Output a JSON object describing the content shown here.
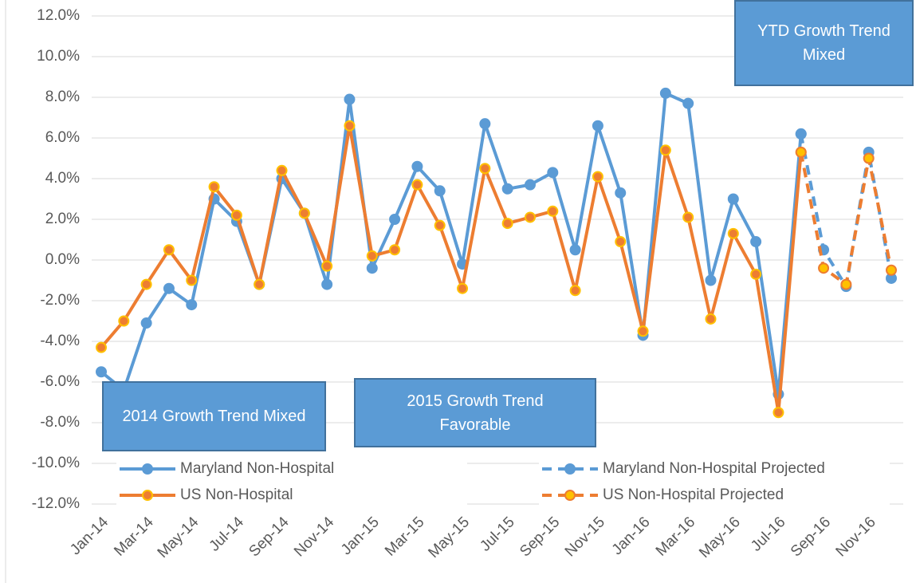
{
  "chart_data": {
    "type": "line",
    "categories": [
      "Jan-14",
      null,
      "Mar-14",
      null,
      "May-14",
      null,
      "Jul-14",
      null,
      "Sep-14",
      null,
      "Nov-14",
      null,
      "Jan-15",
      null,
      "Mar-15",
      null,
      "May-15",
      null,
      "Jul-15",
      null,
      "Sep-15",
      null,
      "Nov-15",
      null,
      "Jan-16",
      null,
      "Mar-16",
      null,
      "May-16",
      null,
      "Jul-16",
      null,
      "Sep-16",
      null,
      "Nov-16",
      null
    ],
    "series": [
      {
        "name": "Maryland Non-Hospital",
        "color": "#5b9bd5",
        "marker_fill": "#5b9bd5",
        "marker_stroke": "#5b9bd5",
        "dashed": false,
        "values": [
          -5.5,
          -6.4,
          -3.1,
          -1.4,
          -2.2,
          3.0,
          1.9,
          -1.2,
          4.0,
          2.3,
          -1.2,
          7.9,
          -0.4,
          2.0,
          4.6,
          3.4,
          -0.2,
          6.7,
          3.5,
          3.7,
          4.3,
          0.5,
          6.6,
          3.3,
          -3.7,
          8.2,
          7.7,
          -1.0,
          3.0,
          0.9,
          -6.6,
          6.2,
          null,
          null,
          null,
          null
        ]
      },
      {
        "name": "Maryland Non-Hospital Projected",
        "color": "#5b9bd5",
        "marker_fill": "#5b9bd5",
        "marker_stroke": "#5b9bd5",
        "dashed": true,
        "values": [
          null,
          null,
          null,
          null,
          null,
          null,
          null,
          null,
          null,
          null,
          null,
          null,
          null,
          null,
          null,
          null,
          null,
          null,
          null,
          null,
          null,
          null,
          null,
          null,
          null,
          null,
          null,
          null,
          null,
          null,
          null,
          6.2,
          0.5,
          -1.3,
          5.3,
          -0.9
        ]
      },
      {
        "name": "US Non-Hospital",
        "color": "#ed7d31",
        "marker_fill": "#ed7d31",
        "marker_stroke": "#ffc000",
        "dashed": false,
        "values": [
          -4.3,
          -3.0,
          -1.2,
          0.5,
          -1.0,
          3.6,
          2.2,
          -1.2,
          4.4,
          2.3,
          -0.3,
          6.6,
          0.2,
          0.5,
          3.7,
          1.7,
          -1.4,
          4.5,
          1.8,
          2.1,
          2.4,
          -1.5,
          4.1,
          0.9,
          -3.5,
          5.4,
          2.1,
          -2.9,
          1.3,
          -0.7,
          -7.5,
          5.3,
          null,
          null,
          null,
          null
        ]
      },
      {
        "name": "US Non-Hospital Projected",
        "color": "#ed7d31",
        "marker_fill": "#ffc000",
        "marker_stroke": "#ed7d31",
        "dashed": true,
        "values": [
          null,
          null,
          null,
          null,
          null,
          null,
          null,
          null,
          null,
          null,
          null,
          null,
          null,
          null,
          null,
          null,
          null,
          null,
          null,
          null,
          null,
          null,
          null,
          null,
          null,
          null,
          null,
          null,
          null,
          null,
          null,
          5.3,
          -0.4,
          -1.2,
          5.0,
          -0.5
        ]
      }
    ],
    "ylim": [
      -12,
      12
    ],
    "yticks": [
      {
        "value": -12,
        "label": "-12.0%"
      },
      {
        "value": -10,
        "label": "-10.0%"
      },
      {
        "value": -8,
        "label": "-8.0%"
      },
      {
        "value": -6,
        "label": "-6.0%"
      },
      {
        "value": -4,
        "label": "-4.0%"
      },
      {
        "value": -2,
        "label": "-2.0%"
      },
      {
        "value": 0,
        "label": "0.0%"
      },
      {
        "value": 2,
        "label": "2.0%"
      },
      {
        "value": 4,
        "label": "4.0%"
      },
      {
        "value": 6,
        "label": "6.0%"
      },
      {
        "value": 8,
        "label": "8.0%"
      },
      {
        "value": 10,
        "label": "10.0%"
      },
      {
        "value": 12,
        "label": "12.0%"
      }
    ],
    "grid": true,
    "annotations": [
      "YTD Growth Trend Mixed",
      "2014 Growth Trend Mixed",
      "2015 Growth Trend Favorable"
    ]
  }
}
